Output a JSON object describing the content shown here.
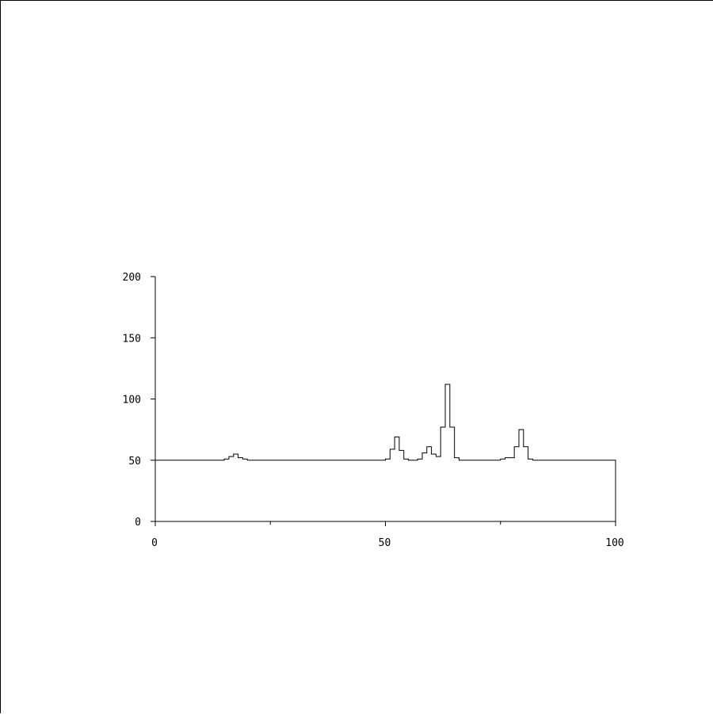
{
  "chart_data": {
    "type": "step-line",
    "title": "",
    "xlabel": "",
    "ylabel": "",
    "xlim": [
      0,
      100
    ],
    "ylim": [
      0,
      200
    ],
    "grid": false,
    "x_major_ticks": [
      0,
      50,
      100
    ],
    "x_minor_ticks": [
      25,
      75
    ],
    "y_ticks": [
      0,
      50,
      100,
      150,
      200
    ],
    "x_tick_labels": [
      "0",
      "50",
      "100"
    ],
    "y_tick_labels": [
      "0",
      "50",
      "100",
      "150",
      "200"
    ],
    "line_color": "#000000",
    "bin_width": 1,
    "series": [
      {
        "x": [
          0,
          1,
          2,
          3,
          4,
          5,
          6,
          7,
          8,
          9,
          10,
          11,
          12,
          13,
          14,
          15,
          16,
          17,
          18,
          19,
          20,
          21,
          22,
          23,
          24,
          25,
          26,
          27,
          28,
          29,
          30,
          31,
          32,
          33,
          34,
          35,
          36,
          37,
          38,
          39,
          40,
          41,
          42,
          43,
          44,
          45,
          46,
          47,
          48,
          49,
          50,
          51,
          52,
          53,
          54,
          55,
          56,
          57,
          58,
          59,
          60,
          61,
          62,
          63,
          64,
          65,
          66,
          67,
          68,
          69,
          70,
          71,
          72,
          73,
          74,
          75,
          76,
          77,
          78,
          79,
          80,
          81,
          82,
          83,
          84,
          85,
          86,
          87,
          88,
          89,
          90,
          91,
          92,
          93,
          94,
          95,
          96,
          97,
          98,
          99
        ],
        "values": [
          50,
          50,
          50,
          50,
          50,
          50,
          50,
          50,
          50,
          50,
          50,
          50,
          50,
          50,
          50,
          51,
          53,
          55,
          52,
          51,
          50,
          50,
          50,
          50,
          50,
          50,
          50,
          50,
          50,
          50,
          50,
          50,
          50,
          50,
          50,
          50,
          50,
          50,
          50,
          50,
          50,
          50,
          50,
          50,
          50,
          50,
          50,
          50,
          50,
          50,
          51,
          59,
          69,
          58,
          51,
          50,
          50,
          51,
          56,
          61,
          55,
          53,
          77,
          112,
          77,
          52,
          50,
          50,
          50,
          50,
          50,
          50,
          50,
          50,
          50,
          51,
          52,
          52,
          61,
          75,
          61,
          51,
          50,
          50,
          50,
          50,
          50,
          50,
          50,
          50,
          50,
          50,
          50,
          50,
          50,
          50,
          50,
          50,
          50,
          50
        ]
      }
    ]
  }
}
